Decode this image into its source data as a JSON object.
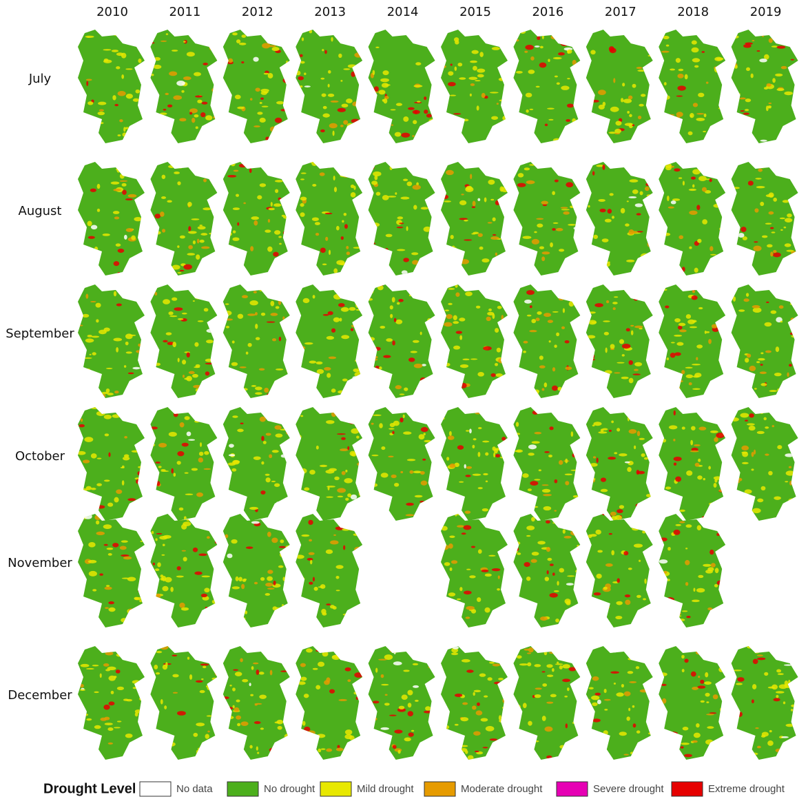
{
  "columns": [
    "2010",
    "2011",
    "2012",
    "2013",
    "2014",
    "2015",
    "2016",
    "2017",
    "2018",
    "2019"
  ],
  "rows": [
    "July",
    "August",
    "September",
    "October",
    "November",
    "December"
  ],
  "legend": {
    "title": "Drought Level",
    "items": [
      {
        "label": "No data",
        "color": "#ffffff"
      },
      {
        "label": "No drought",
        "color": "#4caf1c"
      },
      {
        "label": "Mild drought",
        "color": "#e8e800"
      },
      {
        "label": "Moderate drought",
        "color": "#e69b00"
      },
      {
        "label": "Severe drought",
        "color": "#e600b4"
      },
      {
        "label": "Extreme drought",
        "color": "#e60000"
      }
    ]
  }
}
